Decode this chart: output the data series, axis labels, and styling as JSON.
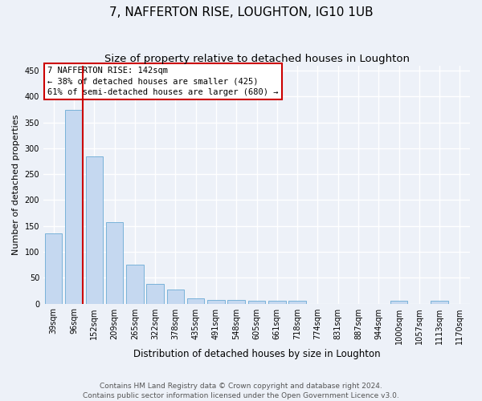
{
  "title": "7, NAFFERTON RISE, LOUGHTON, IG10 1UB",
  "subtitle": "Size of property relative to detached houses in Loughton",
  "xlabel": "Distribution of detached houses by size in Loughton",
  "ylabel": "Number of detached properties",
  "footnote1": "Contains HM Land Registry data © Crown copyright and database right 2024.",
  "footnote2": "Contains public sector information licensed under the Open Government Licence v3.0.",
  "bar_labels": [
    "39sqm",
    "96sqm",
    "152sqm",
    "209sqm",
    "265sqm",
    "322sqm",
    "378sqm",
    "435sqm",
    "491sqm",
    "548sqm",
    "605sqm",
    "661sqm",
    "718sqm",
    "774sqm",
    "831sqm",
    "887sqm",
    "944sqm",
    "1000sqm",
    "1057sqm",
    "1113sqm",
    "1170sqm"
  ],
  "bar_values": [
    135,
    375,
    285,
    158,
    75,
    38,
    27,
    10,
    7,
    7,
    5,
    5,
    5,
    0,
    0,
    0,
    0,
    5,
    0,
    5,
    0
  ],
  "bar_color": "#c5d8f0",
  "bar_edge_color": "#6aaad4",
  "background_color": "#edf1f8",
  "grid_color": "#ffffff",
  "property_label": "7 NAFFERTON RISE: 142sqm",
  "annotation_line1": "← 38% of detached houses are smaller (425)",
  "annotation_line2": "61% of semi-detached houses are larger (680) →",
  "annotation_box_facecolor": "#ffffff",
  "annotation_box_edgecolor": "#cc0000",
  "property_line_color": "#cc0000",
  "property_line_x": 1.43,
  "ylim": [
    0,
    460
  ],
  "yticks": [
    0,
    50,
    100,
    150,
    200,
    250,
    300,
    350,
    400,
    450
  ],
  "title_fontsize": 11,
  "subtitle_fontsize": 9.5,
  "ylabel_fontsize": 8,
  "xlabel_fontsize": 8.5,
  "tick_fontsize": 7,
  "annotation_fontsize": 7.5,
  "footnote_fontsize": 6.5
}
